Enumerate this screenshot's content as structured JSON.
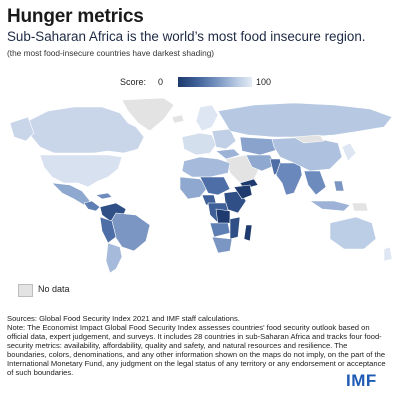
{
  "header": {
    "title": "Hunger metrics",
    "subtitle": "Sub-Saharan Africa is the world’s most food insecure region.",
    "shading_note": "(the most food-insecure countries have darkest shading)"
  },
  "legend": {
    "label": "Score:",
    "min": "0",
    "max": "100",
    "scale_colors": {
      "low_score": "#1e3a6e",
      "high_score": "#e4ebf5"
    }
  },
  "map": {
    "no_data_color": "#e3e3e3",
    "border_color": "#ffffff"
  },
  "key": {
    "no_data_label": "No data"
  },
  "footer": {
    "source": "Sources: Global Food Security Index 2021 and IMF staff calculations.",
    "note": "Note: The Economist Impact Global Food Security Index assesses countries’ food security outlook based on official data, expert judgement, and surveys. It includes 28 countries in sub-Saharan Africa and tracks four food-security metrics: availability, affordability, quality and safety, and natural resources and resilience. The boundaries, colors, denominations, and any other information shown on the maps do not imply, on the part of the International Monetary Fund, any judgment on the legal status of any territory or any endorsement or acceptance of such boundaries.",
    "logo": "IMF"
  }
}
